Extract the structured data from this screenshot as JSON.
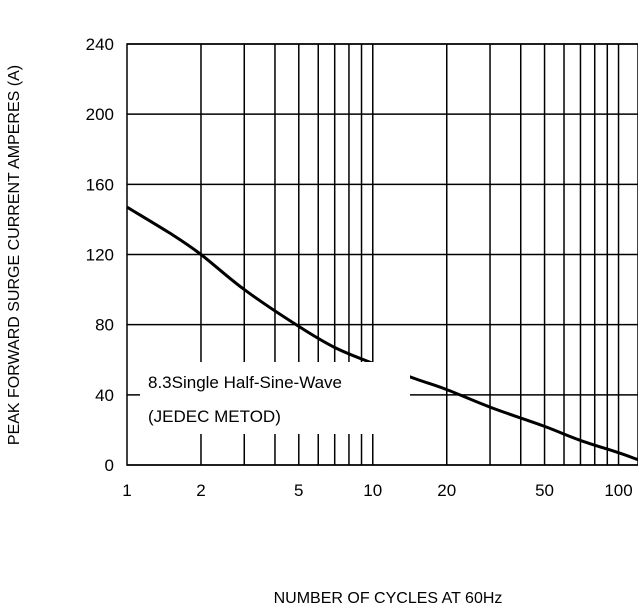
{
  "chart_data": {
    "type": "line",
    "title": "",
    "xlabel": "NUMBER OF CYCLES AT 60Hz",
    "ylabel": "PEAK FORWARD  SURGE CURRENT AMPERES (A)",
    "xscale": "log",
    "xlim": [
      1,
      120
    ],
    "ylim": [
      0,
      240
    ],
    "x_ticks": [
      1,
      2,
      5,
      10,
      20,
      50,
      100
    ],
    "x_tick_labels": [
      "1",
      "2",
      "5",
      "10",
      "20",
      "50",
      "100"
    ],
    "y_ticks": [
      0,
      40,
      80,
      120,
      160,
      200,
      240
    ],
    "y_tick_labels": [
      "0",
      "40",
      "80",
      "120",
      "160",
      "200",
      "240"
    ],
    "grid": true,
    "series": [
      {
        "x": [
          1,
          1.5,
          2,
          3,
          5,
          7,
          10,
          15,
          20,
          30,
          50,
          70,
          100,
          120
        ],
        "y": [
          147,
          132,
          120,
          100,
          79,
          67,
          58,
          49,
          43,
          33,
          22,
          14,
          7,
          3
        ],
        "color": "#000000"
      }
    ],
    "annotation": {
      "lines": [
        "8.3Single Half-Sine-Wave",
        "(JEDEC METOD)"
      ]
    }
  }
}
